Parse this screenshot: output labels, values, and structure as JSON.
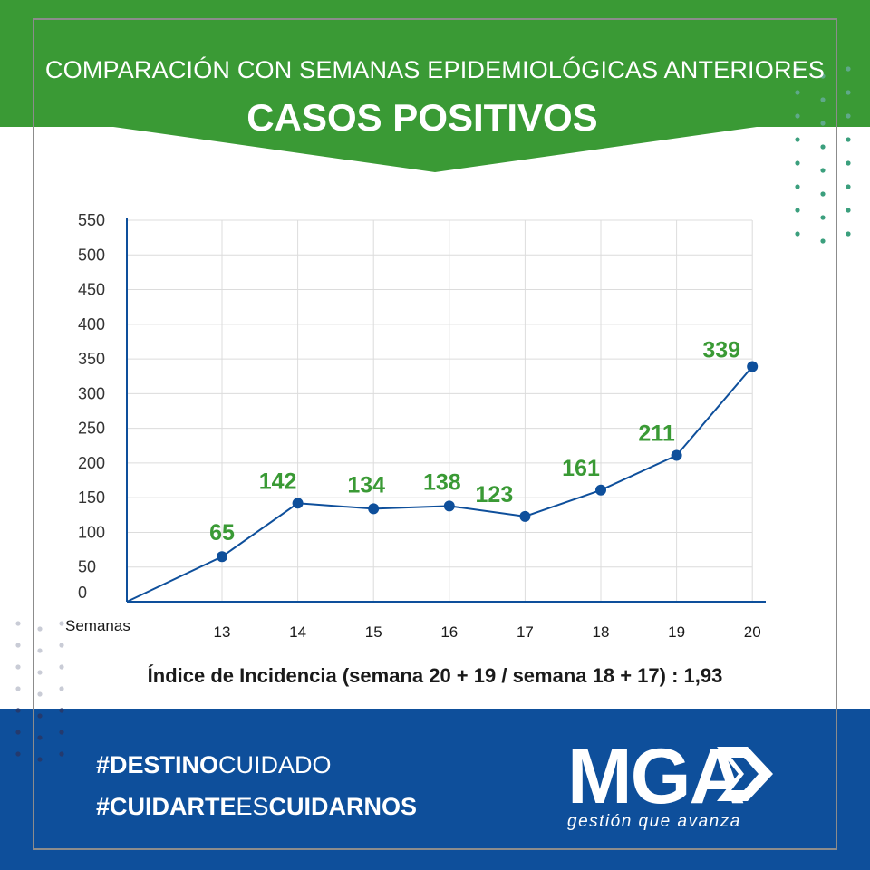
{
  "header": {
    "subtitle": "COMPARACIÓN CON SEMANAS EPIDEMIOLÓGICAS ANTERIORES",
    "title": "CASOS POSITIVOS"
  },
  "colors": {
    "brand_green": "#3a9a35",
    "brand_blue": "#0e4f9b",
    "line": "#0e4f9b",
    "label_green": "#3a9a35"
  },
  "chart_data": {
    "type": "line",
    "title": "CASOS POSITIVOS",
    "xlabel": "Semanas",
    "ylabel": "",
    "x": [
      "13",
      "14",
      "15",
      "16",
      "17",
      "18",
      "19",
      "20"
    ],
    "values": [
      65,
      142,
      134,
      138,
      123,
      161,
      211,
      339
    ],
    "data_labels": [
      "65",
      "142",
      "134",
      "138",
      "123",
      "161",
      "211",
      "339"
    ],
    "start_value": 0,
    "yticks": [
      0,
      50,
      100,
      150,
      200,
      250,
      300,
      350,
      400,
      450,
      500,
      550
    ],
    "ylim": [
      0,
      550
    ],
    "grid": true
  },
  "incidence_text": "Índice de Incidencia (semana 20 + 19 / semana 18 + 17) : 1,93",
  "footer": {
    "hashtag1_bold": "#DESTINO",
    "hashtag1_light": "CUIDADO",
    "hashtag2_bold": "#CUIDARTE",
    "hashtag2_light": "ES",
    "hashtag2_bold_end": "CUIDARNOS",
    "logo_text": "MGA",
    "logo_tagline": "gestión que avanza"
  }
}
